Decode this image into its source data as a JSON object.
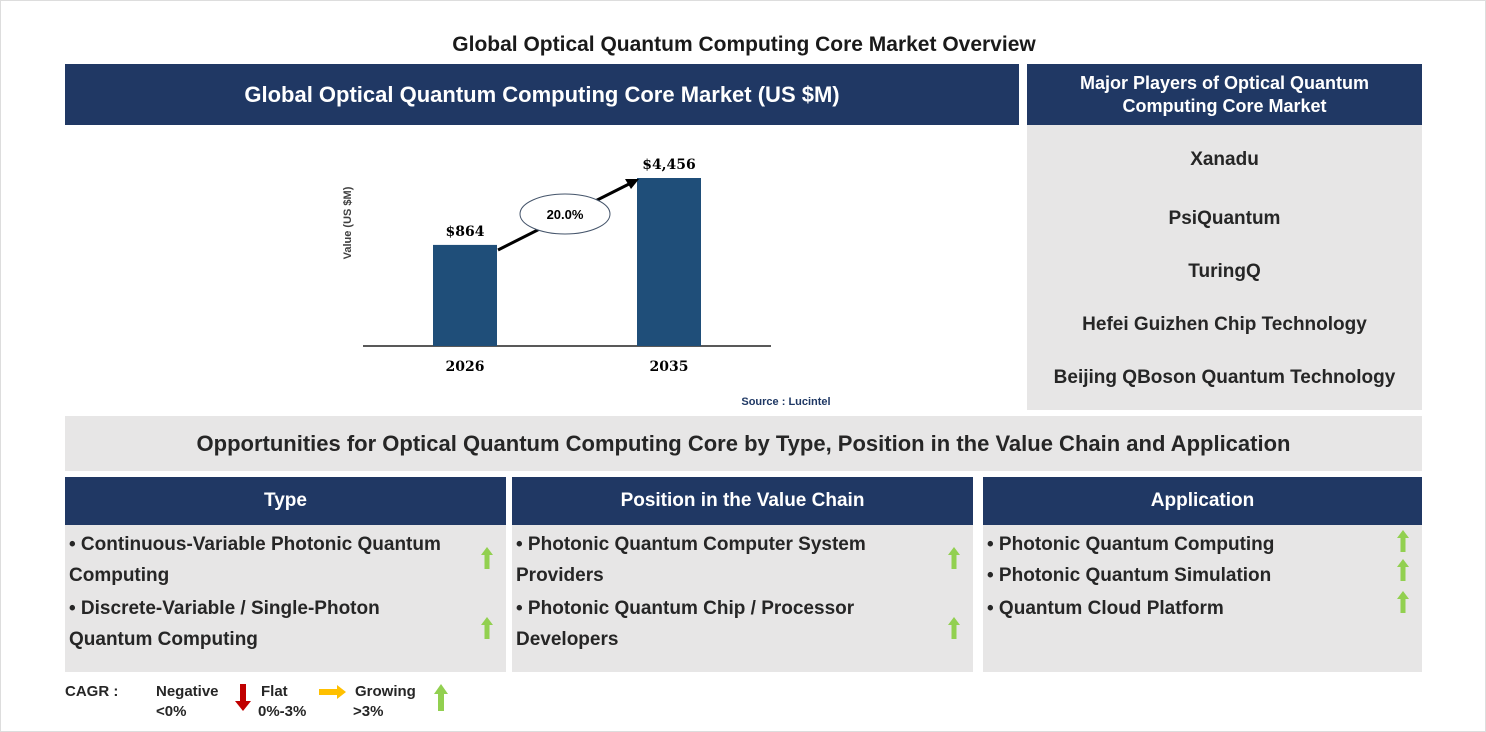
{
  "title": "Global Optical Quantum Computing Core Market Overview",
  "market": {
    "header": "Global Optical Quantum Computing Core Market (US $M)",
    "source": "Source : Lucintel"
  },
  "chart_data": {
    "type": "bar",
    "categories": [
      "2026",
      "2035"
    ],
    "values": [
      864,
      4456
    ],
    "data_labels": [
      "$864",
      "$4,456"
    ],
    "ylabel": "Value (US $M)",
    "annotation": "20.0%",
    "bar_color": "#1f4e79"
  },
  "players": {
    "header": "Major Players of Optical Quantum Computing Core Market",
    "items": [
      "Xanadu",
      "PsiQuantum",
      "TuringQ",
      "Hefei Guizhen Chip Technology",
      "Beijing QBoson Quantum Technology"
    ]
  },
  "opportunities": {
    "header": "Opportunities for Optical Quantum Computing Core by Type, Position in the Value Chain and Application",
    "columns": [
      {
        "title": "Type",
        "items": [
          "• Continuous-Variable Photonic Quantum Computing",
          "• Discrete-Variable / Single-Photon Quantum Computing"
        ],
        "trend": [
          "growing",
          "growing"
        ]
      },
      {
        "title": "Position in the Value Chain",
        "items": [
          "• Photonic Quantum Computer System Providers",
          "• Photonic Quantum Chip / Processor Developers"
        ],
        "trend": [
          "growing",
          "growing"
        ]
      },
      {
        "title": "Application",
        "items": [
          "• Photonic Quantum Computing",
          "• Photonic Quantum Simulation",
          "• Quantum Cloud Platform"
        ],
        "trend": [
          "growing",
          "growing",
          "growing"
        ]
      }
    ]
  },
  "legend": {
    "label": "CAGR :",
    "negative": "Negative",
    "negative_range": "<0%",
    "flat": "Flat",
    "flat_range": "0%-3%",
    "growing": "Growing",
    "growing_range": ">3%",
    "colors": {
      "negative": "#c00000",
      "flat": "#ffc000",
      "growing": "#92d050"
    }
  }
}
